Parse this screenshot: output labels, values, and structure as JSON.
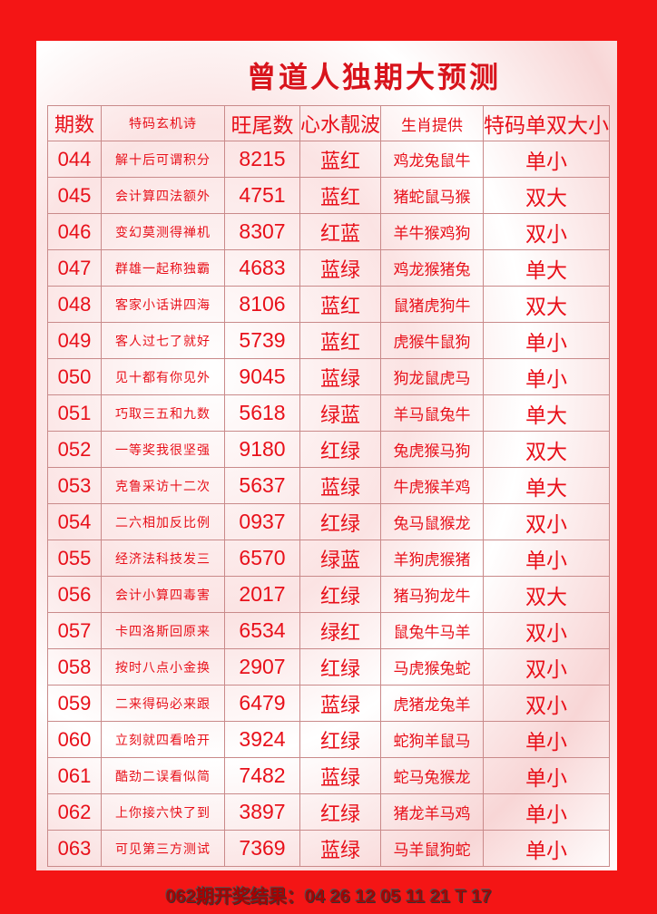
{
  "title": "曾道人独期大预测",
  "headers": [
    "期数",
    "特码玄机诗",
    "旺尾数",
    "心水靓波",
    "生肖提供",
    "特码单双大小"
  ],
  "rows": [
    [
      "044",
      "解十后可谓积分",
      "8215",
      "蓝红",
      "鸡龙兔鼠牛",
      "单小"
    ],
    [
      "045",
      "会计算四法额外",
      "4751",
      "蓝红",
      "猪蛇鼠马猴",
      "双大"
    ],
    [
      "046",
      "变幻莫测得禅机",
      "8307",
      "红蓝",
      "羊牛猴鸡狗",
      "双小"
    ],
    [
      "047",
      "群雄一起称独霸",
      "4683",
      "蓝绿",
      "鸡龙猴猪兔",
      "单大"
    ],
    [
      "048",
      "客家小话讲四海",
      "8106",
      "蓝红",
      "鼠猪虎狗牛",
      "双大"
    ],
    [
      "049",
      "客人过七了就好",
      "5739",
      "蓝红",
      "虎猴牛鼠狗",
      "单小"
    ],
    [
      "050",
      "见十都有你见外",
      "9045",
      "蓝绿",
      "狗龙鼠虎马",
      "单小"
    ],
    [
      "051",
      "巧取三五和九数",
      "5618",
      "绿蓝",
      "羊马鼠兔牛",
      "单大"
    ],
    [
      "052",
      "一等奖我很坚强",
      "9180",
      "红绿",
      "兔虎猴马狗",
      "双大"
    ],
    [
      "053",
      "克鲁采访十二次",
      "5637",
      "蓝绿",
      "牛虎猴羊鸡",
      "单大"
    ],
    [
      "054",
      "二六相加反比例",
      "0937",
      "红绿",
      "兔马鼠猴龙",
      "双小"
    ],
    [
      "055",
      "经济法科技发三",
      "6570",
      "绿蓝",
      "羊狗虎猴猪",
      "单小"
    ],
    [
      "056",
      "会计小算四毒害",
      "2017",
      "红绿",
      "猪马狗龙牛",
      "双大"
    ],
    [
      "057",
      "卡四洛斯回原来",
      "6534",
      "绿红",
      "鼠兔牛马羊",
      "双小"
    ],
    [
      "058",
      "按时八点小金换",
      "2907",
      "红绿",
      "马虎猴兔蛇",
      "双小"
    ],
    [
      "059",
      "二来得码必来跟",
      "6479",
      "蓝绿",
      "虎猪龙兔羊",
      "双小"
    ],
    [
      "060",
      "立刻就四看哈开",
      "3924",
      "红绿",
      "蛇狗羊鼠马",
      "单小"
    ],
    [
      "061",
      "酷劲二误看似简",
      "7482",
      "蓝绿",
      "蛇马兔猴龙",
      "单小"
    ],
    [
      "062",
      "上你接六快了到",
      "3897",
      "红绿",
      "猪龙羊马鸡",
      "单小"
    ],
    [
      "063",
      "可见第三方测试",
      "7369",
      "蓝绿",
      "马羊鼠狗蛇",
      "单小"
    ]
  ],
  "footer": "062期开奖结果：04 26 12 05 11 21 T 17"
}
